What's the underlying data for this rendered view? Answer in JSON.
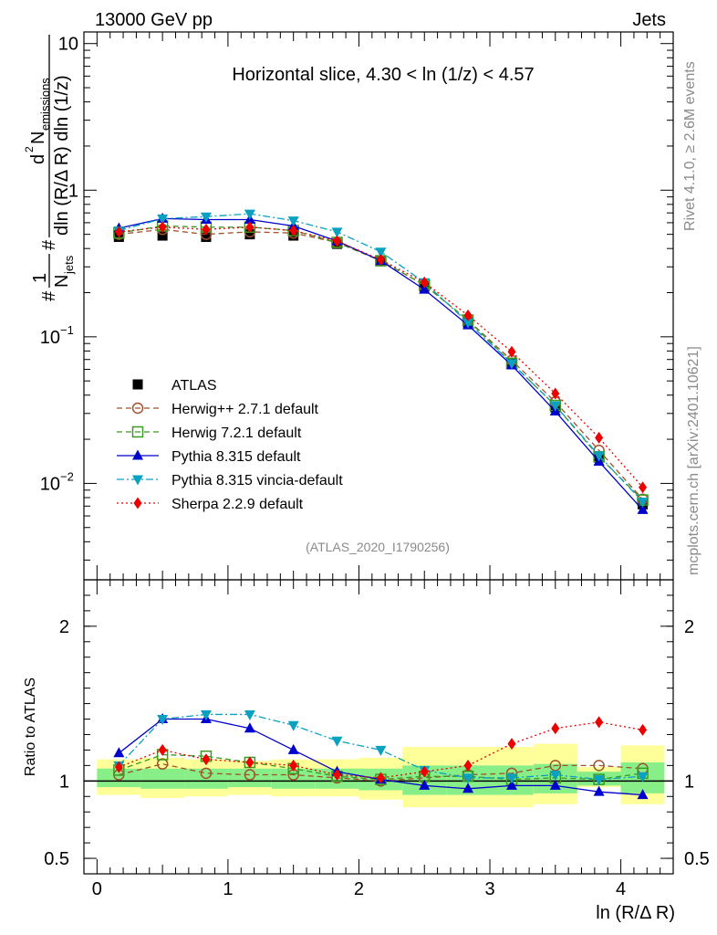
{
  "header": {
    "left": "13000 GeV pp",
    "right": "Jets"
  },
  "side_labels": {
    "rivet": "Rivet 4.1.0, ≥ 2.6M events",
    "mcplots": "mcplots.cern.ch [arXiv:2401.10621]"
  },
  "analysis_id": "(ATLAS_2020_I1790256)",
  "colors": {
    "atlas": "#000000",
    "herwigpp": "#a0522d",
    "herwig7": "#3a9a22",
    "pythia": "#0000cc",
    "vincia": "#0aa0c0",
    "sherpa": "#ee0000",
    "band_outer": "#ffff99",
    "band_inner": "#88ee88"
  },
  "chart_data": [
    {
      "type": "line",
      "panel": "main",
      "title": "Horizontal slice, 4.30 < ln (1/z) < 4.57",
      "ylabel_parts": {
        "hash1": "#",
        "one": "1",
        "njets": "N",
        "njets_sub": "jets",
        "hash2": "#",
        "d2": "d",
        "d2_sup": "2",
        "nemis": "N",
        "nemis_sub": "emissions",
        "denom": "dln (R/Δ R) dln (1/z)"
      },
      "yscale": "log",
      "ylim": [
        0.0022,
        12
      ],
      "xlim": [
        -0.1,
        4.4
      ],
      "yticks": [
        {
          "value": 10,
          "label": "10"
        },
        {
          "value": 1,
          "label": "1"
        },
        {
          "value": 0.1,
          "label": "10",
          "exp": "−1"
        },
        {
          "value": 0.01,
          "label": "10",
          "exp": "−2"
        }
      ],
      "x": [
        0.167,
        0.5,
        0.833,
        1.167,
        1.5,
        1.833,
        2.167,
        2.5,
        2.833,
        3.167,
        3.5,
        3.833,
        4.167
      ],
      "series": [
        {
          "key": "atlas",
          "name": "ATLAS",
          "marker": "square",
          "style": "none",
          "values": [
            0.48,
            0.49,
            0.48,
            0.5,
            0.49,
            0.43,
            0.33,
            0.22,
            0.125,
            0.066,
            0.033,
            0.015,
            0.0072
          ]
        },
        {
          "key": "herwigpp",
          "name": "Herwig++ 2.7.1 default",
          "marker": "circle-open",
          "style": "dashed",
          "values": [
            0.5,
            0.54,
            0.5,
            0.52,
            0.51,
            0.44,
            0.33,
            0.225,
            0.13,
            0.069,
            0.036,
            0.0168,
            0.0078
          ]
        },
        {
          "key": "herwig7",
          "name": "Herwig 7.2.1 default",
          "marker": "square-open",
          "style": "dashed",
          "values": [
            0.51,
            0.57,
            0.56,
            0.56,
            0.53,
            0.44,
            0.33,
            0.226,
            0.13,
            0.066,
            0.034,
            0.0152,
            0.0077
          ]
        },
        {
          "key": "pythia",
          "name": "Pythia 8.315 default",
          "marker": "triangle-up",
          "style": "solid",
          "values": [
            0.55,
            0.64,
            0.63,
            0.63,
            0.57,
            0.45,
            0.33,
            0.21,
            0.12,
            0.064,
            0.031,
            0.0141,
            0.0066
          ]
        },
        {
          "key": "vincia",
          "name": "Pythia 8.315 vincia-default",
          "marker": "triangle-down",
          "style": "dashdot",
          "values": [
            0.53,
            0.64,
            0.66,
            0.69,
            0.62,
            0.52,
            0.38,
            0.235,
            0.125,
            0.066,
            0.034,
            0.0155,
            0.0075
          ]
        },
        {
          "key": "sherpa",
          "name": "Sherpa 2.2.9 default",
          "marker": "diamond",
          "style": "dotted",
          "values": [
            0.52,
            0.56,
            0.54,
            0.56,
            0.53,
            0.45,
            0.335,
            0.235,
            0.14,
            0.079,
            0.041,
            0.0205,
            0.0094
          ]
        }
      ]
    },
    {
      "type": "line",
      "panel": "ratio",
      "ylabel": "Ratio to ATLAS",
      "xlabel": "ln (R/Δ R)",
      "ylim": [
        0.4,
        2.3
      ],
      "xlim": [
        -0.1,
        4.4
      ],
      "yticks": [
        {
          "value": 2,
          "label": "2"
        },
        {
          "value": 1,
          "label": "1"
        },
        {
          "value": 0.5,
          "label": "0.5"
        }
      ],
      "xticks": [
        {
          "value": 0,
          "label": "0"
        },
        {
          "value": 1,
          "label": "1"
        },
        {
          "value": 2,
          "label": "2"
        },
        {
          "value": 3,
          "label": "3"
        },
        {
          "value": 4,
          "label": "4"
        }
      ],
      "x": [
        0.167,
        0.5,
        0.833,
        1.167,
        1.5,
        1.833,
        2.167,
        2.5,
        2.833,
        3.167,
        3.5,
        3.833,
        4.167
      ],
      "bin_edges": [
        0,
        0.333,
        0.667,
        1.0,
        1.333,
        1.667,
        2.0,
        2.333,
        2.667,
        3.0,
        3.333,
        3.667,
        4.0,
        4.333
      ],
      "band_outer": [
        [
          0.91,
          1.14
        ],
        [
          0.89,
          1.15
        ],
        [
          0.9,
          1.14
        ],
        [
          0.91,
          1.13
        ],
        [
          0.9,
          1.14
        ],
        [
          0.9,
          1.14
        ],
        [
          0.88,
          1.15
        ],
        [
          0.83,
          1.22
        ],
        [
          0.83,
          1.22
        ],
        [
          0.83,
          1.22
        ],
        [
          0.85,
          1.24
        ],
        [
          0.96,
          1.09
        ],
        [
          0.85,
          1.23
        ]
      ],
      "band_inner": [
        [
          0.96,
          1.08
        ],
        [
          0.95,
          1.08
        ],
        [
          0.95,
          1.08
        ],
        [
          0.96,
          1.08
        ],
        [
          0.95,
          1.08
        ],
        [
          0.95,
          1.08
        ],
        [
          0.94,
          1.08
        ],
        [
          0.91,
          1.1
        ],
        [
          0.91,
          1.1
        ],
        [
          0.91,
          1.1
        ],
        [
          0.92,
          1.11
        ],
        [
          0.97,
          1.06
        ],
        [
          0.92,
          1.12
        ]
      ],
      "series": [
        {
          "key": "herwigpp",
          "values": [
            1.04,
            1.11,
            1.05,
            1.04,
            1.04,
            1.02,
            1.0,
            1.02,
            1.04,
            1.05,
            1.1,
            1.1,
            1.08
          ]
        },
        {
          "key": "herwig7",
          "values": [
            1.07,
            1.17,
            1.16,
            1.12,
            1.08,
            1.03,
            1.01,
            1.03,
            1.03,
            1.01,
            1.02,
            1.01,
            1.05
          ]
        },
        {
          "key": "pythia",
          "values": [
            1.18,
            1.4,
            1.4,
            1.34,
            1.2,
            1.06,
            1.01,
            0.97,
            0.95,
            0.97,
            0.97,
            0.93,
            0.91
          ]
        },
        {
          "key": "vincia",
          "values": [
            1.1,
            1.4,
            1.43,
            1.43,
            1.36,
            1.26,
            1.2,
            1.07,
            1.02,
            1.02,
            1.04,
            1.01,
            1.03
          ]
        },
        {
          "key": "sherpa",
          "values": [
            1.09,
            1.2,
            1.14,
            1.12,
            1.1,
            1.04,
            1.02,
            1.06,
            1.1,
            1.24,
            1.34,
            1.38,
            1.33
          ]
        }
      ]
    }
  ]
}
